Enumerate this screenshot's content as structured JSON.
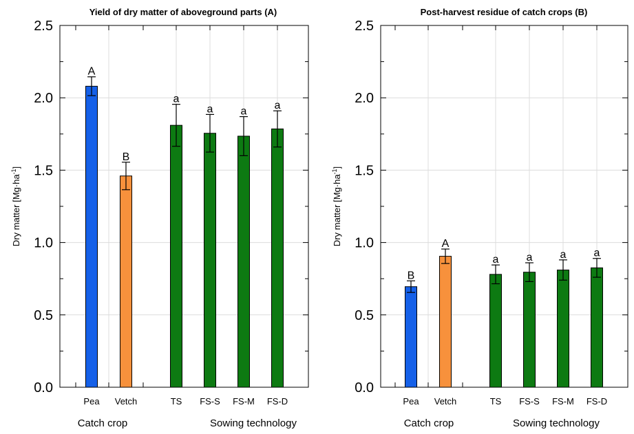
{
  "chart_data": [
    {
      "type": "bar",
      "title": "Yield of dry matter of aboveground parts  (A)",
      "ylabel": "Dry matter [Mg·ha",
      "ylabel_sup": "-1",
      "ylabel_close": "]",
      "ylim": [
        0,
        2.5
      ],
      "yticks": [
        "0.0",
        "0.5",
        "1.0",
        "1.5",
        "2.0",
        "2.5"
      ],
      "grid": true,
      "categories": [
        "Pea",
        "Vetch",
        "TS",
        "FS-S",
        "FS-M",
        "FS-D"
      ],
      "values": [
        2.08,
        1.46,
        1.81,
        1.755,
        1.735,
        1.785
      ],
      "errors": [
        0.065,
        0.095,
        0.145,
        0.13,
        0.135,
        0.125
      ],
      "letters": [
        "A",
        "B",
        "a",
        "a",
        "a",
        "a"
      ],
      "colors": [
        "#1560e8",
        "#f7913c",
        "#0d7a12",
        "#0d7a12",
        "#0d7a12",
        "#0d7a12"
      ],
      "groups": [
        "Catch crop",
        "Sowing technology"
      ]
    },
    {
      "type": "bar",
      "title": "Post-harvest residue of catch crops  (B)",
      "ylabel": "Dry matter [Mg·ha",
      "ylabel_sup": "-1",
      "ylabel_close": "]",
      "ylim": [
        0,
        2.5
      ],
      "yticks": [
        "0.0",
        "0.5",
        "1.0",
        "1.5",
        "2.0",
        "2.5"
      ],
      "grid": true,
      "categories": [
        "Pea",
        "Vetch",
        "TS",
        "FS-S",
        "FS-M",
        "FS-D"
      ],
      "values": [
        0.695,
        0.905,
        0.78,
        0.795,
        0.81,
        0.825
      ],
      "errors": [
        0.04,
        0.05,
        0.065,
        0.065,
        0.07,
        0.065
      ],
      "letters": [
        "B",
        "A",
        "a",
        "a",
        "a",
        "a"
      ],
      "colors": [
        "#1560e8",
        "#f7913c",
        "#0d7a12",
        "#0d7a12",
        "#0d7a12",
        "#0d7a12"
      ],
      "groups": [
        "Catch crop",
        "Sowing technology"
      ]
    }
  ]
}
